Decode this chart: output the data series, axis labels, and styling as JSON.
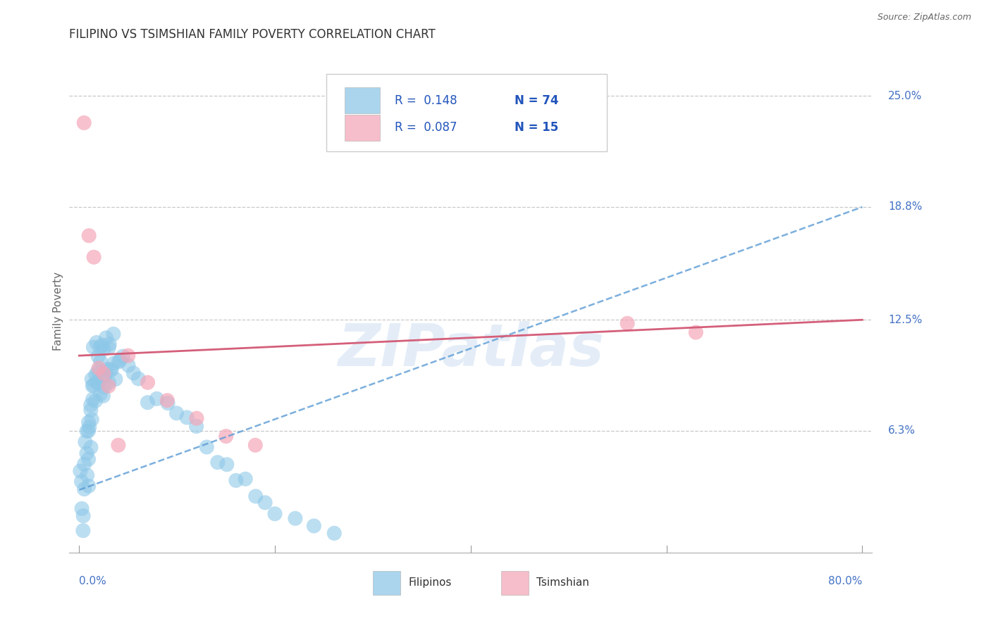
{
  "title": "FILIPINO VS TSIMSHIAN FAMILY POVERTY CORRELATION CHART",
  "source": "Source: ZipAtlas.com",
  "ylabel": "Family Poverty",
  "xlim_data": [
    0.0,
    80.0
  ],
  "ylim_data": [
    0.0,
    26.5
  ],
  "ytick_values": [
    6.3,
    12.5,
    18.8,
    25.0
  ],
  "ytick_labels": [
    "6.3%",
    "12.5%",
    "18.8%",
    "25.0%"
  ],
  "xtick_left_label": "0.0%",
  "xtick_right_label": "80.0%",
  "legend_r1": "R =  0.148",
  "legend_n1": "N = 74",
  "legend_r2": "R =  0.087",
  "legend_n2": "N = 15",
  "color_filipino": "#8ec8e8",
  "color_tsimshian": "#f4a7b9",
  "color_trend_filipino": "#5b9bd5",
  "color_trend_tsimshian": "#d45f7a",
  "color_grid": "#c8c8c8",
  "color_tick_label": "#4472c4",
  "color_r_value": "#2255bb",
  "color_n_value": "#2255bb",
  "color_source": "#666666",
  "color_title": "#333333",
  "color_ylabel": "#666666",
  "watermark_color": "#c5d8ef",
  "background": "#ffffff",
  "trend_fil_x0": 0.0,
  "trend_fil_y0": 3.0,
  "trend_fil_x1": 80.0,
  "trend_fil_y1": 18.8,
  "trend_tsim_x0": 0.0,
  "trend_tsim_y0": 10.5,
  "trend_tsim_x1": 80.0,
  "trend_tsim_y1": 12.5,
  "fil_x": [
    0.1,
    0.2,
    0.3,
    0.4,
    0.5,
    0.5,
    0.6,
    0.6,
    0.7,
    0.8,
    0.8,
    0.9,
    1.0,
    1.0,
    1.0,
    1.1,
    1.1,
    1.2,
    1.2,
    1.3,
    1.3,
    1.4,
    1.5,
    1.5,
    1.5,
    1.6,
    1.7,
    1.8,
    1.8,
    1.9,
    2.0,
    2.0,
    2.1,
    2.2,
    2.2,
    2.3,
    2.4,
    2.5,
    2.5,
    2.6,
    2.7,
    2.8,
    2.8,
    3.0,
    3.0,
    3.1,
    3.2,
    3.3,
    3.5,
    3.6,
    3.8,
    4.0,
    4.2,
    4.5,
    5.0,
    5.5,
    6.0,
    7.0,
    8.0,
    9.0,
    10.0,
    11.0,
    12.0,
    13.0,
    14.0,
    15.0,
    16.0,
    17.0,
    18.0,
    19.0,
    20.0,
    22.0,
    24.0,
    26.0
  ],
  "fil_y": [
    4.0,
    3.5,
    2.0,
    1.5,
    3.0,
    1.0,
    5.5,
    4.0,
    6.0,
    5.0,
    3.5,
    7.0,
    6.5,
    5.0,
    3.5,
    8.0,
    6.5,
    7.5,
    5.5,
    9.0,
    7.0,
    8.5,
    10.5,
    9.0,
    7.5,
    9.5,
    8.0,
    11.0,
    9.5,
    10.0,
    10.5,
    9.0,
    11.5,
    10.0,
    8.5,
    11.0,
    9.5,
    10.5,
    8.5,
    9.0,
    10.0,
    11.5,
    9.5,
    10.5,
    9.0,
    11.0,
    10.0,
    9.5,
    11.5,
    10.0,
    9.5,
    10.5,
    10.0,
    11.0,
    9.5,
    10.0,
    9.0,
    8.5,
    8.0,
    7.5,
    7.0,
    6.5,
    6.0,
    5.5,
    5.0,
    4.5,
    4.0,
    3.5,
    3.0,
    2.5,
    2.0,
    1.5,
    1.0,
    0.5
  ],
  "tsim_x": [
    0.5,
    1.0,
    1.5,
    2.0,
    2.5,
    3.0,
    4.0,
    5.0,
    7.0,
    9.0,
    12.0,
    15.0,
    18.0,
    56.0,
    63.0
  ],
  "tsim_y": [
    23.5,
    17.2,
    16.0,
    9.8,
    9.5,
    8.8,
    5.5,
    10.5,
    9.0,
    8.0,
    7.0,
    6.0,
    5.5,
    12.3,
    11.8
  ]
}
